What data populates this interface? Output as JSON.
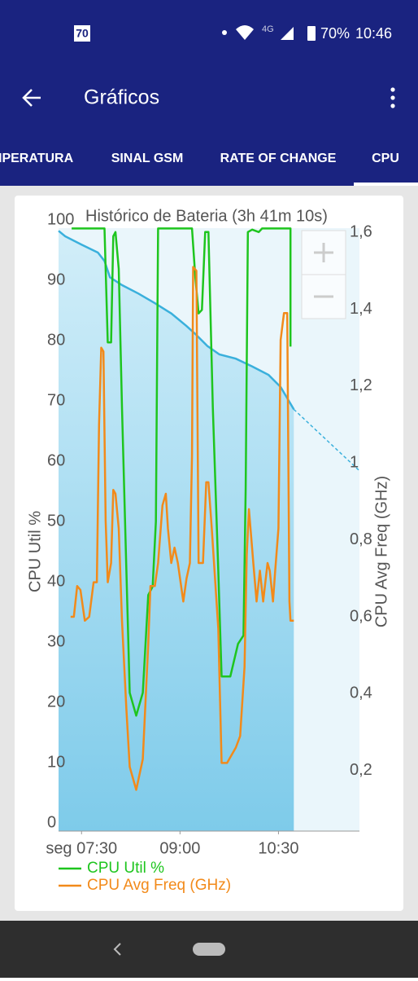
{
  "status_bar": {
    "carrier_icon": "70",
    "network": "4G",
    "battery": "70%",
    "time": "10:46"
  },
  "app_bar": {
    "title": "Gráficos"
  },
  "tabs": [
    "IPERATURA",
    "SINAL GSM",
    "RATE OF CHANGE",
    "CPU"
  ],
  "chart_data": {
    "type": "line",
    "title": "Histórico de Bateria (3h 41m 10s)",
    "y_label": "CPU Util %",
    "y2_label": "CPU Avg Freq (GHz)",
    "xlim": [
      "07:09",
      "11:44"
    ],
    "xticks": [
      {
        "value": "07:30",
        "label": "seg 07:30"
      },
      "09:00",
      "10:30"
    ],
    "ylim": [
      0,
      100
    ],
    "yticks": [
      0,
      10,
      20,
      30,
      40,
      50,
      60,
      70,
      80,
      90,
      100
    ],
    "y2lim": [
      0.064,
      1.632
    ],
    "y2ticks": [
      {
        "value": 0.2,
        "label": "0,2"
      },
      {
        "value": 0.4,
        "label": "0,4"
      },
      {
        "value": 0.6,
        "label": "0,6"
      },
      {
        "value": 0.8,
        "label": "0,8"
      },
      1,
      {
        "value": 1.2,
        "label": "1,2"
      },
      {
        "value": 1.4,
        "label": "1,4"
      },
      {
        "value": 1.6,
        "label": "1,6"
      }
    ],
    "grid": false,
    "battery": {
      "color": "#3ab0dc",
      "x": [
        "07:09",
        "07:15",
        "07:30",
        "07:45",
        "07:51",
        "07:56",
        "08:07",
        "08:22",
        "08:37",
        "08:52",
        "09:06",
        "09:14",
        "09:25",
        "09:36",
        "09:51",
        "10:06",
        "10:21",
        "10:32",
        "10:44"
      ],
      "values": [
        98.2,
        97.3,
        95.9,
        94.6,
        93.2,
        90.5,
        89.2,
        87.8,
        86.2,
        84.5,
        82.4,
        81.1,
        79.1,
        77.7,
        77,
        75.7,
        74.3,
        72.3,
        68.6
      ]
    },
    "battery_projection": {
      "color": "#3ab0dc",
      "dashed": true,
      "x": [
        "10:44",
        "11:44"
      ],
      "values": [
        68.6,
        58.4
      ]
    },
    "series": [
      {
        "name": "CPU Util %",
        "color": "#1ec51e",
        "x": [
          "07:21",
          "07:51",
          "07:52",
          "07:54",
          "07:57",
          "07:59",
          "08:01",
          "08:04",
          "08:07",
          "08:11",
          "08:14",
          "08:20",
          "08:26",
          "08:31",
          "08:35",
          "08:38",
          "08:40",
          "09:11",
          "09:14",
          "09:17",
          "09:20",
          "09:23",
          "09:26",
          "09:30",
          "09:35",
          "09:38",
          "09:46",
          "09:53",
          "09:58",
          "10:00",
          "10:02",
          "10:06",
          "10:12",
          "10:15",
          "10:41",
          "10:41"
        ],
        "values": [
          98.6,
          98.6,
          91.9,
          79.7,
          79.7,
          97.3,
          98,
          91.9,
          68.9,
          41.9,
          21.6,
          17.8,
          21.6,
          37.8,
          39.2,
          50,
          98.6,
          98.6,
          90.5,
          84.5,
          85.1,
          98,
          98,
          68.9,
          41.9,
          24.3,
          24.3,
          29.7,
          31.1,
          55.4,
          98,
          98.4,
          98,
          98.6,
          98.6,
          79
        ]
      },
      {
        "name": "CPU Avg Freq (GHz)",
        "color": "#f28a1a",
        "axis": "y2",
        "x": [
          "07:20",
          "07:23",
          "07:26",
          "07:29",
          "07:33",
          "07:37",
          "07:41",
          "07:44",
          "07:46",
          "07:48",
          "07:50",
          "07:52",
          "07:54",
          "07:57",
          "07:59",
          "08:01",
          "08:04",
          "08:07",
          "08:11",
          "08:14",
          "08:20",
          "08:26",
          "08:31",
          "08:33",
          "08:37",
          "08:40",
          "08:44",
          "08:47",
          "08:49",
          "08:52",
          "08:55",
          "08:58",
          "09:03",
          "09:06",
          "09:09",
          "09:11",
          "09:12",
          "09:15",
          "09:17",
          "09:21",
          "09:24",
          "09:26",
          "09:29",
          "09:35",
          "09:38",
          "09:43",
          "09:51",
          "09:55",
          "09:59",
          "10:01",
          "10:03",
          "10:05",
          "10:07",
          "10:10",
          "10:13",
          "10:16",
          "10:20",
          "10:22",
          "10:25",
          "10:27",
          "10:30",
          "10:32",
          "10:35",
          "10:38",
          "10:40",
          "10:41",
          "10:44"
        ],
        "values": [
          0.6,
          0.6,
          0.68,
          0.67,
          0.59,
          0.6,
          0.69,
          0.69,
          1.1,
          1.3,
          1.29,
          0.85,
          0.69,
          0.74,
          0.93,
          0.92,
          0.83,
          0.59,
          0.36,
          0.21,
          0.15,
          0.23,
          0.53,
          0.68,
          0.68,
          0.74,
          0.89,
          0.92,
          0.83,
          0.74,
          0.78,
          0.74,
          0.64,
          0.7,
          0.74,
          1.02,
          1.51,
          1.5,
          0.74,
          0.74,
          0.95,
          0.95,
          0.83,
          0.57,
          0.22,
          0.22,
          0.26,
          0.29,
          0.47,
          0.76,
          0.88,
          0.81,
          0.74,
          0.64,
          0.72,
          0.64,
          0.74,
          0.72,
          0.64,
          0.72,
          0.83,
          1.32,
          1.39,
          1.39,
          0.64,
          0.59,
          0.59
        ]
      }
    ]
  }
}
